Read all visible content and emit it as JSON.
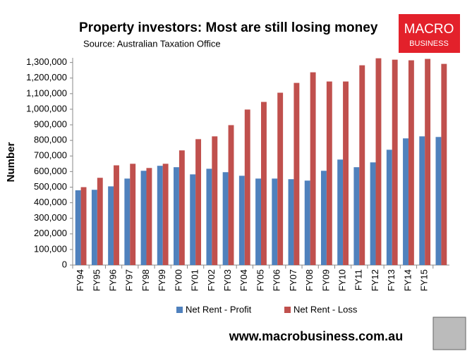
{
  "chart_data": {
    "type": "bar",
    "title": "Property investors: Most are still losing money",
    "subtitle": "Source: Australian Taxation Office",
    "ylabel": "Number",
    "logo": [
      "MACRO",
      "BUSINESS"
    ],
    "footer": "www.macrobusiness.com.au",
    "categories": [
      "FY94",
      "FY95",
      "FY96",
      "FY97",
      "FY98",
      "FY99",
      "FY00",
      "FY01",
      "FY02",
      "FY03",
      "FY04",
      "FY05",
      "FY06",
      "FY07",
      "FY08",
      "FY09",
      "FY10",
      "FY11",
      "FY12",
      "FY13",
      "FY14",
      "FY15",
      null
    ],
    "series": [
      {
        "name": "Net Rent - Profit",
        "color": "#4f81bd",
        "values": [
          480000,
          483000,
          505000,
          555000,
          605000,
          637000,
          628000,
          582000,
          618000,
          596000,
          573000,
          555000,
          555000,
          551000,
          542000,
          605000,
          677000,
          628000,
          659000,
          740000,
          813000,
          826000,
          822000
        ]
      },
      {
        "name": "Net Rent - Loss",
        "color": "#c0504d",
        "values": [
          500000,
          560000,
          640000,
          650000,
          623000,
          650000,
          736000,
          808000,
          826000,
          898000,
          998000,
          1047000,
          1106000,
          1169000,
          1237000,
          1178000,
          1178000,
          1282000,
          1327000,
          1318000,
          1314000,
          1323000,
          1291000
        ]
      }
    ],
    "ylim": [
      0,
      1330000
    ],
    "yticks": [
      0,
      {
        "value": 100000,
        "label": "100,000"
      },
      {
        "value": 200000,
        "label": "200,000"
      },
      {
        "value": 300000,
        "label": "300,000"
      },
      {
        "value": 400000,
        "label": "400,000"
      },
      {
        "value": 500000,
        "label": "500,000"
      },
      {
        "value": 600000,
        "label": "600,000"
      },
      {
        "value": 700000,
        "label": "700,000"
      },
      {
        "value": 800000,
        "label": "800,000"
      },
      {
        "value": 900000,
        "label": "900,000"
      },
      {
        "value": 1000000,
        "label": "1,000,000"
      },
      {
        "value": 1100000,
        "label": "1,100,000"
      },
      {
        "value": 1200000,
        "label": "1,200,000"
      },
      {
        "value": 1300000,
        "label": "1,300,000"
      }
    ],
    "grid": false,
    "legend": "bottom"
  }
}
